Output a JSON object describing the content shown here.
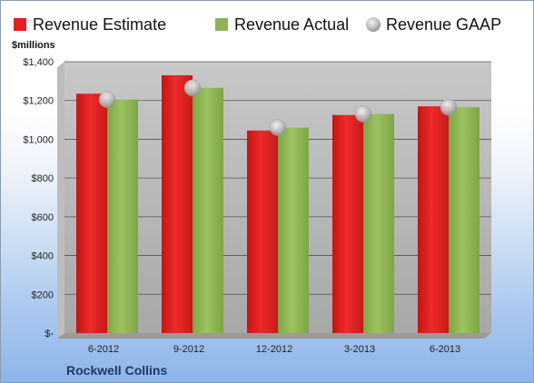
{
  "chart_data": {
    "type": "bar",
    "categories": [
      "6-2012",
      "9-2012",
      "12-2012",
      "3-2013",
      "6-2013"
    ],
    "series": [
      {
        "name": "Revenue Estimate",
        "values": [
          1235,
          1330,
          1045,
          1125,
          1170
        ],
        "color": "#e02020"
      },
      {
        "name": "Revenue Actual",
        "values": [
          1205,
          1265,
          1060,
          1130,
          1165
        ],
        "color": "#8db356"
      }
    ],
    "markers": {
      "name": "Revenue GAAP",
      "values": [
        1205,
        1265,
        1060,
        1130,
        1165
      ],
      "color": "#b8b8b8"
    },
    "ylabel": "$millions",
    "ylim": [
      0,
      1400
    ],
    "ytick_values": [
      0,
      200,
      400,
      600,
      800,
      1000,
      1200,
      1400
    ],
    "ytick_labels": [
      "$-",
      "$200",
      "$400",
      "$600",
      "$800",
      "$1,000",
      "$1,200",
      "$1,400"
    ],
    "grid": true,
    "legend_position": "top"
  },
  "company": "Rockwell Collins"
}
